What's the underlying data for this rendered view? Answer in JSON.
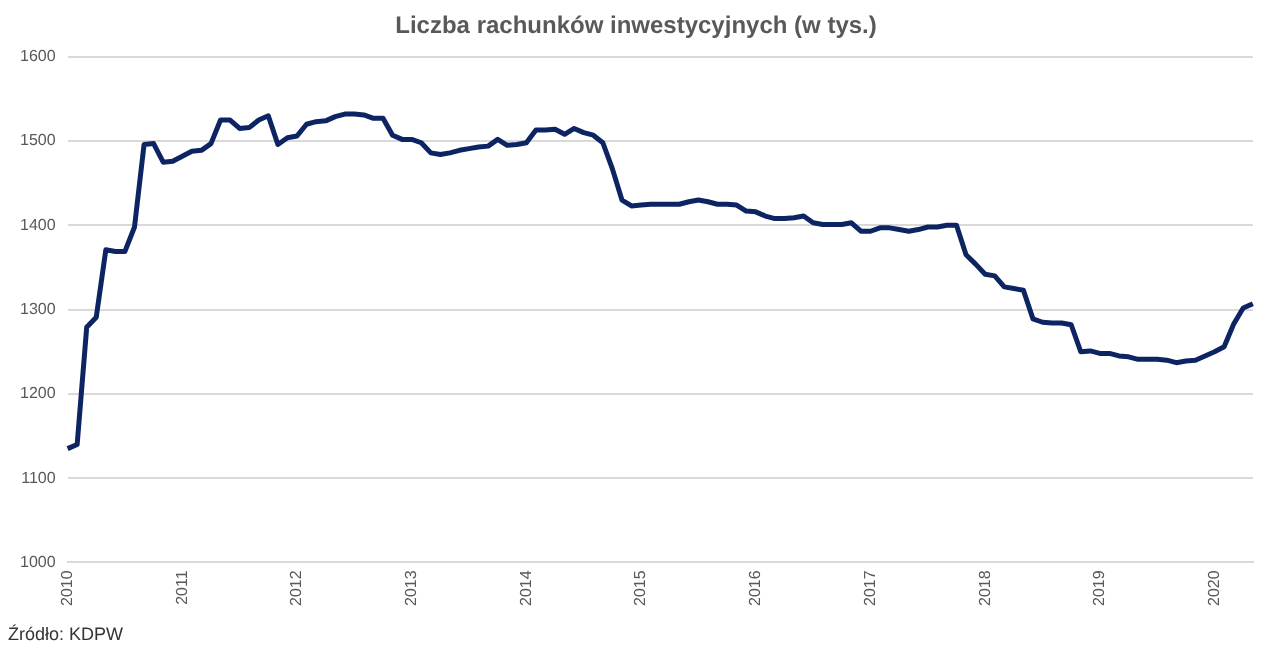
{
  "chart_data": {
    "type": "line",
    "title": "Liczba rachunków inwestycyjnych (w tys.)",
    "categories": [
      "2010",
      null,
      null,
      null,
      null,
      null,
      null,
      null,
      null,
      null,
      null,
      null,
      "2011",
      null,
      null,
      null,
      null,
      null,
      null,
      null,
      null,
      null,
      null,
      null,
      "2012",
      null,
      null,
      null,
      null,
      null,
      null,
      null,
      null,
      null,
      null,
      null,
      "2013",
      null,
      null,
      null,
      null,
      null,
      null,
      null,
      null,
      null,
      null,
      null,
      "2014",
      null,
      null,
      null,
      null,
      null,
      null,
      null,
      null,
      null,
      null,
      null,
      "2015",
      null,
      null,
      null,
      null,
      null,
      null,
      null,
      null,
      null,
      null,
      null,
      "2016",
      null,
      null,
      null,
      null,
      null,
      null,
      null,
      null,
      null,
      null,
      null,
      "2017",
      null,
      null,
      null,
      null,
      null,
      null,
      null,
      null,
      null,
      null,
      null,
      "2018",
      null,
      null,
      null,
      null,
      null,
      null,
      null,
      null,
      null,
      null,
      null,
      "2019",
      null,
      null,
      null,
      null,
      null,
      null,
      null,
      null,
      null,
      null,
      null,
      "2020",
      null,
      null,
      null,
      null
    ],
    "series": [
      {
        "color": "#0d2463",
        "values": [
          1135,
          1140,
          1279,
          1291,
          1371,
          1369,
          1369,
          1398,
          1496,
          1497,
          1475,
          1476,
          1482,
          1488,
          1489,
          1497,
          1525,
          1525,
          1515,
          1516,
          1525,
          1530,
          1496,
          1504,
          1506,
          1520,
          1523,
          1524,
          1529,
          1532,
          1532,
          1531,
          1527,
          1527,
          1507,
          1502,
          1502,
          1498,
          1486,
          1484,
          1486,
          1489,
          1491,
          1493,
          1494,
          1502,
          1495,
          1496,
          1498,
          1513,
          1513,
          1514,
          1508,
          1515,
          1510,
          1507,
          1498,
          1467,
          1430,
          1423,
          1424,
          1425,
          1425,
          1425,
          1425,
          1428,
          1430,
          1428,
          1425,
          1425,
          1424,
          1417,
          1416,
          1411,
          1408,
          1408,
          1409,
          1411,
          1403,
          1401,
          1401,
          1401,
          1403,
          1393,
          1393,
          1397,
          1397,
          1395,
          1393,
          1395,
          1398,
          1398,
          1400,
          1400,
          1365,
          1354,
          1342,
          1340,
          1327,
          1325,
          1323,
          1289,
          1285,
          1284,
          1284,
          1282,
          1250,
          1251,
          1248,
          1248,
          1245,
          1244,
          1241,
          1241,
          1241,
          1240,
          1237,
          1239,
          1240,
          1245,
          1250,
          1256,
          1283,
          1302,
          1307
        ]
      }
    ],
    "ylim": [
      1000,
      1600
    ],
    "yticks": [
      1000,
      1100,
      1200,
      1300,
      1400,
      1500,
      1600
    ],
    "grid": "y",
    "marker": "none",
    "line_style": "solid",
    "annotations": [
      "Źródło: KDPW"
    ]
  }
}
